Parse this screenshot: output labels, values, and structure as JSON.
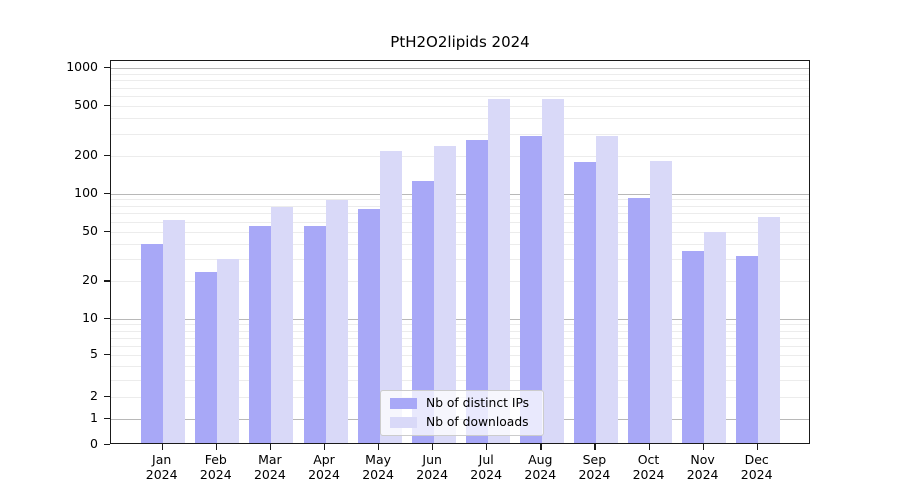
{
  "chart_data": {
    "type": "bar",
    "title": "PtH2O2lipids 2024",
    "categories": [
      "Jan 2024",
      "Feb 2024",
      "Mar 2024",
      "Apr 2024",
      "May 2024",
      "Jun 2024",
      "Jul 2024",
      "Aug 2024",
      "Sep 2024",
      "Oct 2024",
      "Nov 2024",
      "Dec 2024"
    ],
    "series": [
      {
        "name": "Nb of distinct IPs",
        "color": "#a8a8f7",
        "values": [
          38,
          23,
          53,
          53,
          73,
          121,
          258,
          280,
          172,
          89,
          34,
          31
        ]
      },
      {
        "name": "Nb of downloads",
        "color": "#d9d9f8",
        "values": [
          59,
          29,
          76,
          86,
          210,
          230,
          545,
          545,
          280,
          174,
          48,
          63
        ]
      }
    ],
    "y_ticks": [
      0,
      1,
      2,
      5,
      10,
      20,
      50,
      100,
      200,
      500,
      1000
    ],
    "y_scale": "asinh",
    "ylim": [
      0,
      1000
    ],
    "xlabel": "",
    "ylabel": "",
    "grid": true,
    "legend_position": "lower-center"
  }
}
